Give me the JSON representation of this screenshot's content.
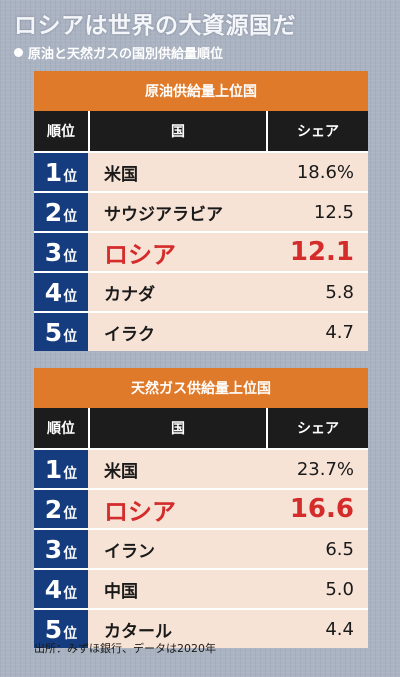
{
  "title": "ロシアは世界の大資源国だ",
  "subtitle": "原油と天然ガスの国別供給量順位",
  "columns": {
    "rank": "順位",
    "country": "国",
    "share": "シェア"
  },
  "rank_suffix": "位",
  "source": "出所：みずほ銀行、データは2020年",
  "chart_data": [
    {
      "type": "table",
      "title": "原油供給量上位国",
      "columns": [
        "順位",
        "国",
        "シェア"
      ],
      "rows": [
        {
          "rank": "1",
          "country": "米国",
          "share": "18.6%",
          "value": 18.6,
          "highlight": false
        },
        {
          "rank": "2",
          "country": "サウジアラビア",
          "share": "12.5",
          "value": 12.5,
          "highlight": false
        },
        {
          "rank": "3",
          "country": "ロシア",
          "share": "12.1",
          "value": 12.1,
          "highlight": true
        },
        {
          "rank": "4",
          "country": "カナダ",
          "share": "5.8",
          "value": 5.8,
          "highlight": false
        },
        {
          "rank": "5",
          "country": "イラク",
          "share": "4.7",
          "value": 4.7,
          "highlight": false
        }
      ]
    },
    {
      "type": "table",
      "title": "天然ガス供給量上位国",
      "columns": [
        "順位",
        "国",
        "シェア"
      ],
      "rows": [
        {
          "rank": "1",
          "country": "米国",
          "share": "23.7%",
          "value": 23.7,
          "highlight": false
        },
        {
          "rank": "2",
          "country": "ロシア",
          "share": "16.6",
          "value": 16.6,
          "highlight": true
        },
        {
          "rank": "3",
          "country": "イラン",
          "share": "6.5",
          "value": 6.5,
          "highlight": false
        },
        {
          "rank": "4",
          "country": "中国",
          "share": "5.0",
          "value": 5.0,
          "highlight": false
        },
        {
          "rank": "5",
          "country": "カタール",
          "share": "4.4",
          "value": 4.4,
          "highlight": false
        }
      ]
    }
  ],
  "colors": {
    "header_orange": "#e07a2b",
    "header_dark": "#1c1c1c",
    "rank_navy": "#143c7f",
    "row_bg": "#f7e3d6",
    "highlight_red": "#d42b2b"
  }
}
